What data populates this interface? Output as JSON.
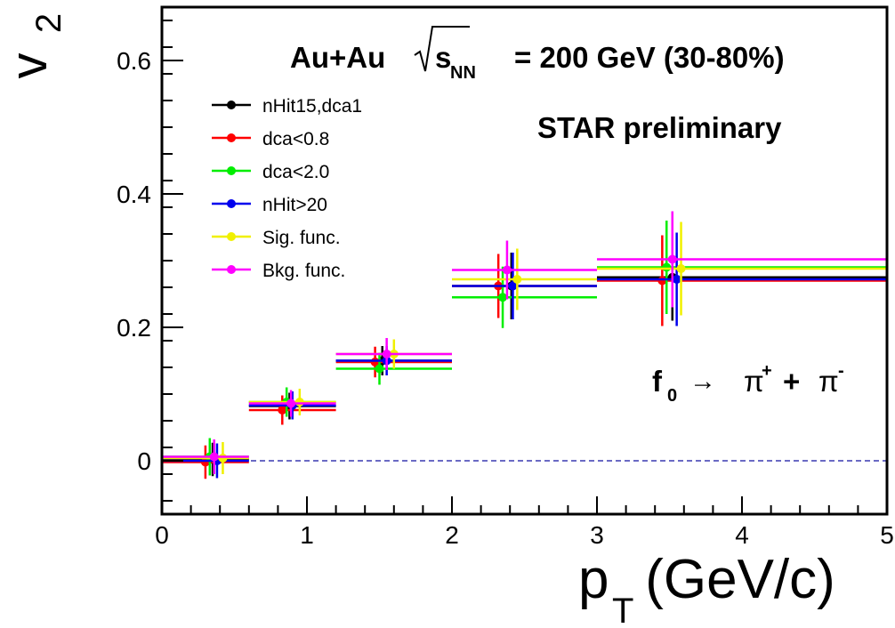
{
  "chart_data": {
    "type": "scatter",
    "title": "Au+Au",
    "energy_label": {
      "sqrt": "s",
      "sub": "NN",
      "rest": "= 200 GeV (30-80%)"
    },
    "preliminary": "STAR preliminary",
    "reaction": {
      "particle": "f",
      "particle_sub": "0",
      "arrow": "→",
      "pi1": "π",
      "sup1": "+",
      "plus": "+",
      "pi2": "π",
      "sup2": "-"
    },
    "xlabel": {
      "main": "p",
      "sub": "T",
      "unit": " (GeV/c)"
    },
    "ylabel": {
      "main": "v",
      "sub": "2"
    },
    "xlim": [
      0,
      5
    ],
    "ylim": [
      -0.08,
      0.68
    ],
    "x_ticks": [
      "0",
      "1",
      "2",
      "3",
      "4",
      "5"
    ],
    "y_ticks": [
      "0",
      "0.2",
      "0.4",
      "0.6"
    ],
    "reference_line": {
      "y": 0,
      "style": "dashed",
      "color": "#1010a0"
    },
    "legend_position": "top-left",
    "series": [
      {
        "name": "nHit15,dca1",
        "color": "#000000",
        "points": [
          {
            "x": 0.35,
            "y": 0.002,
            "xlo": 0.0,
            "xhi": 0.6,
            "err": 0.025
          },
          {
            "x": 0.88,
            "y": 0.082,
            "xlo": 0.6,
            "xhi": 1.2,
            "err": 0.02
          },
          {
            "x": 1.52,
            "y": 0.15,
            "xlo": 1.2,
            "xhi": 2.0,
            "err": 0.022
          },
          {
            "x": 2.41,
            "y": 0.262,
            "xlo": 2.0,
            "xhi": 3.0,
            "err": 0.05
          },
          {
            "x": 3.52,
            "y": 0.275,
            "xlo": 3.0,
            "xhi": 5.0,
            "err": 0.065
          }
        ]
      },
      {
        "name": "dca<0.8",
        "color": "#ff0000",
        "points": [
          {
            "x": 0.3,
            "y": -0.002,
            "xlo": 0.0,
            "xhi": 0.6,
            "err": 0.025
          },
          {
            "x": 0.83,
            "y": 0.076,
            "xlo": 0.6,
            "xhi": 1.2,
            "err": 0.022
          },
          {
            "x": 1.47,
            "y": 0.148,
            "xlo": 1.2,
            "xhi": 2.0,
            "err": 0.023
          },
          {
            "x": 2.32,
            "y": 0.262,
            "xlo": 2.0,
            "xhi": 3.0,
            "err": 0.048
          },
          {
            "x": 3.45,
            "y": 0.27,
            "xlo": 3.0,
            "xhi": 5.0,
            "err": 0.068
          }
        ]
      },
      {
        "name": "dca<2.0",
        "color": "#00ee00",
        "points": [
          {
            "x": 0.33,
            "y": 0.006,
            "xlo": 0.0,
            "xhi": 0.6,
            "err": 0.028
          },
          {
            "x": 0.86,
            "y": 0.088,
            "xlo": 0.6,
            "xhi": 1.2,
            "err": 0.022
          },
          {
            "x": 1.5,
            "y": 0.138,
            "xlo": 1.2,
            "xhi": 2.0,
            "err": 0.024
          },
          {
            "x": 2.35,
            "y": 0.245,
            "xlo": 2.0,
            "xhi": 3.0,
            "err": 0.046
          },
          {
            "x": 3.48,
            "y": 0.29,
            "xlo": 3.0,
            "xhi": 5.0,
            "err": 0.07
          }
        ]
      },
      {
        "name": "nHit>20",
        "color": "#0000ee",
        "points": [
          {
            "x": 0.38,
            "y": 0.0,
            "xlo": 0.0,
            "xhi": 0.6,
            "err": 0.026
          },
          {
            "x": 0.9,
            "y": 0.083,
            "xlo": 0.6,
            "xhi": 1.2,
            "err": 0.021
          },
          {
            "x": 1.55,
            "y": 0.15,
            "xlo": 1.2,
            "xhi": 2.0,
            "err": 0.022
          },
          {
            "x": 2.42,
            "y": 0.262,
            "xlo": 2.0,
            "xhi": 3.0,
            "err": 0.05
          },
          {
            "x": 3.55,
            "y": 0.272,
            "xlo": 3.0,
            "xhi": 5.0,
            "err": 0.07
          }
        ]
      },
      {
        "name": "Sig. func.",
        "color": "#f0f000",
        "points": [
          {
            "x": 0.42,
            "y": 0.004,
            "xlo": 0.0,
            "xhi": 0.6,
            "err": 0.024
          },
          {
            "x": 0.95,
            "y": 0.088,
            "xlo": 0.6,
            "xhi": 1.2,
            "err": 0.02
          },
          {
            "x": 1.6,
            "y": 0.16,
            "xlo": 1.2,
            "xhi": 2.0,
            "err": 0.022
          },
          {
            "x": 2.45,
            "y": 0.272,
            "xlo": 2.0,
            "xhi": 3.0,
            "err": 0.046
          },
          {
            "x": 3.58,
            "y": 0.288,
            "xlo": 3.0,
            "xhi": 5.0,
            "err": 0.07
          }
        ]
      },
      {
        "name": "Bkg. func.",
        "color": "#ff00ff",
        "points": [
          {
            "x": 0.36,
            "y": 0.006,
            "xlo": 0.0,
            "xhi": 0.6,
            "err": 0.026
          },
          {
            "x": 0.89,
            "y": 0.086,
            "xlo": 0.6,
            "xhi": 1.2,
            "err": 0.02
          },
          {
            "x": 1.55,
            "y": 0.16,
            "xlo": 1.2,
            "xhi": 2.0,
            "err": 0.024
          },
          {
            "x": 2.38,
            "y": 0.286,
            "xlo": 2.0,
            "xhi": 3.0,
            "err": 0.044
          },
          {
            "x": 3.52,
            "y": 0.302,
            "xlo": 3.0,
            "xhi": 5.0,
            "err": 0.072
          }
        ]
      }
    ]
  }
}
